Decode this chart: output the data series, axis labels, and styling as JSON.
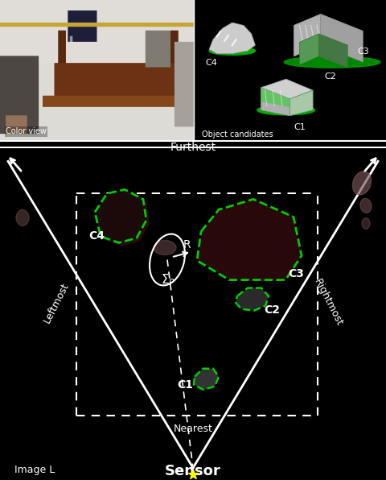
{
  "figsize": [
    4.8,
    5.96
  ],
  "dpi": 100,
  "bg_color": "#000000",
  "white": "#ffffff",
  "green": "#00cc00",
  "yellow": "#ffff00",
  "top_left_label": "Color view",
  "top_right_label": "Object candidates",
  "bottom_label": "Image L",
  "sensor_label": "Sensor",
  "furthest_label": "Furthest",
  "nearest_label": "Nearest",
  "leftmost_label": "Leftmost",
  "rightmost_label": "Rightmost"
}
